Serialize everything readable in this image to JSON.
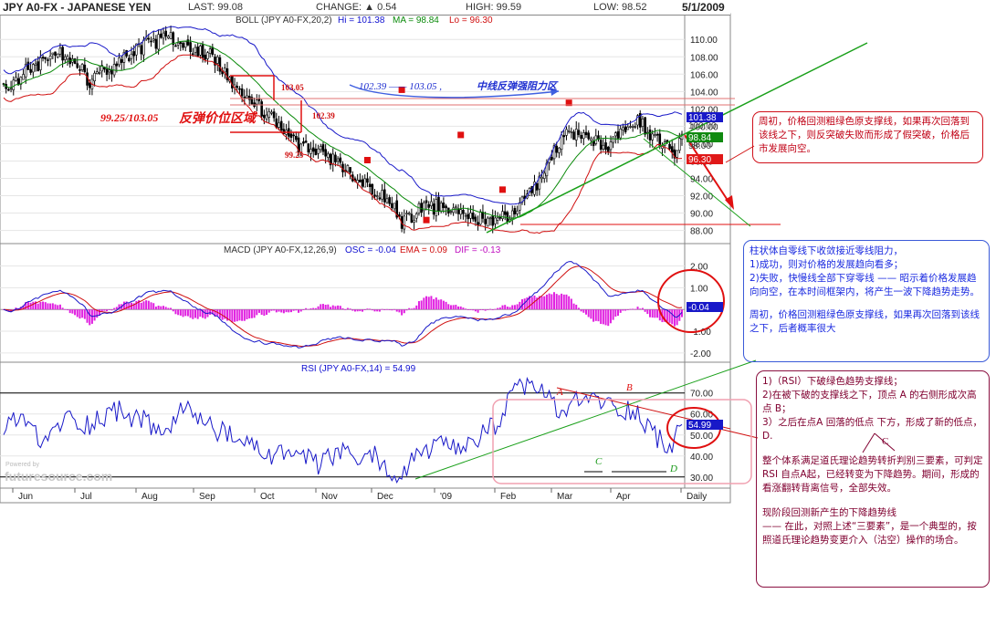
{
  "header": {
    "symbol": "JPY A0-FX - JAPANESE YEN",
    "last": "LAST: 99.08",
    "change": "CHANGE: ▲ 0.54",
    "high": "HIGH: 99.59",
    "low": "LOW: 98.52",
    "date": "5/1/2009"
  },
  "panel_titles": {
    "boll": "BOLL (JPY A0-FX,20,2)",
    "boll_hi": "Hi = 101.38",
    "boll_ma": "MA = 98.84",
    "boll_lo": "Lo = 96.30",
    "macd": "MACD (JPY A0-FX,12,26,9)",
    "macd_osc": "OSC = -0.04",
    "macd_ema": "EMA = 0.09",
    "macd_dif": "DIF = -0.13",
    "rsi": "RSI (JPY A0-FX,14) = 54.99"
  },
  "price_badges": {
    "hi": "101.38",
    "ma": "98.84",
    "lo": "96.30",
    "partial": "100.00",
    "partial2": "98.00"
  },
  "macd_badge": "-0.04",
  "rsi_badge": "54.99",
  "x_axis": {
    "labels": [
      "Jun",
      "Jul",
      "Aug",
      "Sep",
      "Oct",
      "Nov",
      "Dec",
      "'09",
      "Feb",
      "Mar",
      "Apr",
      "Daily"
    ]
  },
  "watermark": "futuresource.com",
  "watermark_small": "Powered by",
  "annotations": {
    "zone_range": "99.25/103.05",
    "zone_label": "反弹价位区域",
    "lvl_10305": "103.05",
    "lvl_10239": "102.39",
    "lvl_9925": "99.25",
    "blue_range": "102.39 —— 103.05 ,",
    "blue_label": "中线反弹强阻力区",
    "A": "A",
    "B": "B",
    "C": "C",
    "C2": "C",
    "D": "D"
  },
  "notes": {
    "red": [
      "周初，价格回测粗绿色原支撑线，如果再次回落到该线之下，则反突破失败而形成了假突破，价格后市发展向空。"
    ],
    "blue": [
      "柱状体自零线下收敛接近零线阻力，",
      "1)成功，则对价格的发展趋向看多；",
      "2)失败，快慢线全部下穿零线 —— 昭示着价格发展趋向向空，在本时间框架内，将产生一波下降趋势走势。",
      "周初，价格回测粗绿色原支撑线，如果再次回落到该线之下，后者概率很大"
    ],
    "maroon": [
      "1)（RSI）下破绿色趋势支撑线；",
      "2)在被下破的支撑线之下，顶点 A 的右侧形成次高点 B；",
      "3）之后在点A 回落的低点 下方，形成了新的低点，D.",
      "整个体系满足道氏理论趋势转折判别三要素，可判定RSI 自点A起，已经转变为下降趋势。期间，形成的看涨翻转背离信号，全部失效。",
      "现阶段回测新产生的下降趋势线",
      "—— 在此，对照上述“三要素”，是一个典型的，按照道氏理论趋势变更介入（沽空）操作的场合。"
    ]
  },
  "chart_data": [
    {
      "type": "candlestick",
      "title": "JPY A0-FX - JAPANESE YEN",
      "indicator": "BOLL (JPY A0-FX,20,2)",
      "y_ticks": [
        88.0,
        90.0,
        92.0,
        94.0,
        96.0,
        98.0,
        100.0,
        102.0,
        104.0,
        106.0,
        108.0,
        110.0
      ],
      "ylim": [
        86.8,
        111.6
      ],
      "series_names": [
        "Hi",
        "MA",
        "Lo"
      ],
      "close_anchors": [
        [
          0,
          104.3
        ],
        [
          10,
          106.5
        ],
        [
          25,
          108.5
        ],
        [
          35,
          105.3
        ],
        [
          45,
          107.0
        ],
        [
          55,
          109.0
        ],
        [
          65,
          110.2
        ],
        [
          75,
          109.5
        ],
        [
          85,
          108.0
        ],
        [
          92,
          105.5
        ],
        [
          100,
          103.2
        ],
        [
          110,
          100.5
        ],
        [
          120,
          97.5
        ],
        [
          130,
          96.8
        ],
        [
          138,
          95.0
        ],
        [
          148,
          93.0
        ],
        [
          158,
          91.5
        ],
        [
          162,
          88.7
        ],
        [
          170,
          90.5
        ],
        [
          180,
          91.0
        ],
        [
          188,
          90.0
        ],
        [
          196,
          89.2
        ],
        [
          205,
          89.8
        ],
        [
          215,
          92.5
        ],
        [
          222,
          96.0
        ],
        [
          230,
          99.5
        ],
        [
          238,
          98.5
        ],
        [
          245,
          97.5
        ],
        [
          252,
          99.8
        ],
        [
          258,
          100.8
        ],
        [
          262,
          99.5
        ],
        [
          268,
          98.0
        ],
        [
          273,
          97.2
        ],
        [
          276,
          99.1
        ]
      ],
      "last_close": 99.08,
      "last_boll": {
        "hi": 101.38,
        "ma": 98.84,
        "lo": 96.3
      },
      "markers": [
        [
          148,
          96.1
        ],
        [
          162,
          104.2
        ],
        [
          172,
          89.2
        ],
        [
          186,
          99.0
        ],
        [
          203,
          92.7
        ],
        [
          230,
          102.7
        ]
      ],
      "resistance_levels": [
        103.05,
        102.39,
        99.25
      ],
      "support_level": 88.6
    },
    {
      "type": "line",
      "indicator": "MACD (JPY A0-FX,12,26,9)",
      "y_ticks": [
        -2.0,
        -1.0,
        0,
        1.0,
        2.0
      ],
      "ylim": [
        -2.3,
        2.4
      ],
      "series_names": [
        "EMA",
        "DIF",
        "OSC"
      ],
      "last": {
        "osc": -0.04,
        "ema": 0.09,
        "dif": -0.13
      }
    },
    {
      "type": "line",
      "indicator": "RSI (JPY A0-FX,14)",
      "y_ticks": [
        30.0,
        40.0,
        50.0,
        60.0,
        70.0
      ],
      "ylim": [
        26,
        79
      ],
      "reference_levels": [
        70,
        30
      ],
      "last": 54.99,
      "rsi_anchors": [
        [
          0,
          52
        ],
        [
          8,
          60
        ],
        [
          15,
          45
        ],
        [
          25,
          58
        ],
        [
          35,
          55
        ],
        [
          45,
          62
        ],
        [
          55,
          58
        ],
        [
          65,
          50
        ],
        [
          72,
          62
        ],
        [
          80,
          58
        ],
        [
          90,
          50
        ],
        [
          100,
          45
        ],
        [
          110,
          40
        ],
        [
          118,
          42
        ],
        [
          128,
          35
        ],
        [
          136,
          42
        ],
        [
          144,
          38
        ],
        [
          152,
          40
        ],
        [
          160,
          28
        ],
        [
          168,
          40
        ],
        [
          176,
          45
        ],
        [
          185,
          42
        ],
        [
          193,
          48
        ],
        [
          200,
          55
        ],
        [
          207,
          68
        ],
        [
          213,
          75
        ],
        [
          220,
          70
        ],
        [
          226,
          60
        ],
        [
          232,
          65
        ],
        [
          240,
          68
        ],
        [
          248,
          63
        ],
        [
          256,
          62
        ],
        [
          262,
          55
        ],
        [
          270,
          43
        ],
        [
          276,
          55
        ]
      ]
    }
  ]
}
